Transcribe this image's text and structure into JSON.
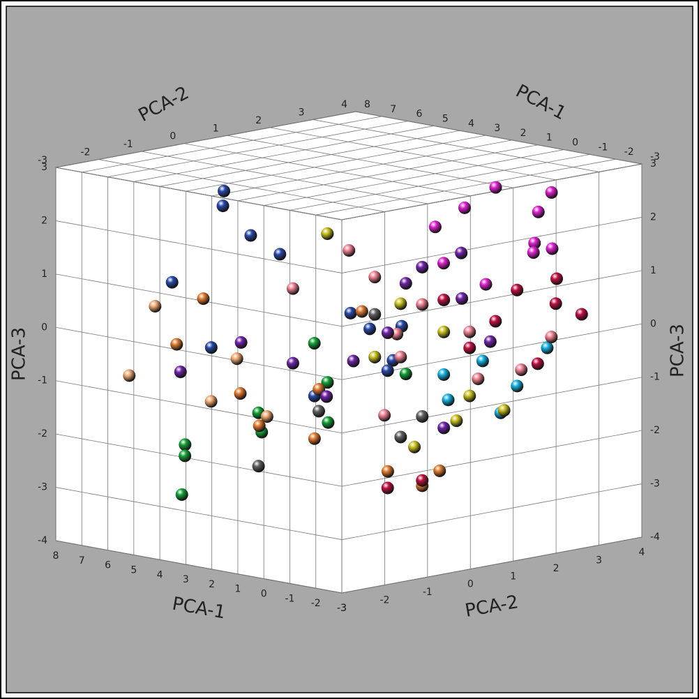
{
  "chart_data": {
    "type": "scatter3d",
    "xlabel": "PCA-1",
    "ylabel": "PCA-2",
    "zlabel": "PCA-3",
    "xlim": [
      -3,
      8
    ],
    "ylim": [
      -3,
      4
    ],
    "zlim": [
      -4,
      3
    ],
    "xticks": [
      -3,
      -2,
      -1,
      0,
      1,
      2,
      3,
      4,
      5,
      6,
      7,
      8
    ],
    "yticks": [
      -3,
      -2,
      -1,
      0,
      1,
      2,
      3,
      4
    ],
    "zticks": [
      -4,
      -3,
      -2,
      -1,
      0,
      1,
      2,
      3
    ],
    "grid": true,
    "series": [
      {
        "color": "#2848a8",
        "x": [
          4.5,
          5.2,
          3.8,
          2.1,
          3.5,
          6.0,
          1.2,
          0.8,
          2.5,
          4.0,
          1.5,
          0.3
        ],
        "y": [
          -1.2,
          -0.8,
          -1.0,
          0.3,
          -0.5,
          -1.5,
          0.2,
          0.5,
          -0.3,
          -1.8,
          0.8,
          0.4
        ],
        "z": [
          2.6,
          2.2,
          1.8,
          0.3,
          1.4,
          0.8,
          0.1,
          -0.5,
          -1.2,
          -0.2,
          -0.8,
          0.2
        ]
      },
      {
        "color": "#e020d0",
        "x": [
          -1.5,
          -0.8,
          -2.0,
          -1.0,
          0.0,
          -2.5,
          -1.8,
          0.5,
          -0.3,
          -1.2
        ],
        "y": [
          1.5,
          1.2,
          2.5,
          2.8,
          1.0,
          1.8,
          2.2,
          1.5,
          2.0,
          3.0
        ],
        "z": [
          2.8,
          2.4,
          2.6,
          2.1,
          2.0,
          1.8,
          1.5,
          1.2,
          0.8,
          1.4
        ]
      },
      {
        "color": "#12a035",
        "x": [
          5.5,
          6.0,
          4.2,
          3.5,
          2.8,
          2.0,
          1.5,
          3.0,
          4.8,
          0.8
        ],
        "y": [
          -1.5,
          -1.2,
          -0.5,
          -1.0,
          0.2,
          -0.3,
          0.5,
          0.0,
          -2.0,
          0.8
        ],
        "z": [
          -2.2,
          -2.5,
          -2.0,
          -1.5,
          -1.8,
          -0.9,
          -0.5,
          -0.3,
          -3.0,
          -0.8
        ]
      },
      {
        "color": "#e07a30",
        "x": [
          5.0,
          4.2,
          3.8,
          2.5,
          1.0,
          0.5,
          -0.5,
          2.0,
          1.5,
          4.8
        ],
        "y": [
          -2.0,
          -1.0,
          -0.8,
          -0.3,
          0.5,
          1.0,
          0.8,
          -0.5,
          0.2,
          -1.5
        ],
        "z": [
          -0.2,
          -1.2,
          -1.8,
          -2.0,
          -2.6,
          -2.9,
          -2.5,
          -1.0,
          0.4,
          0.6
        ]
      },
      {
        "color": "#c01040",
        "x": [
          -1.5,
          -2.0,
          -1.0,
          -2.5,
          -0.5,
          -1.8,
          0.0,
          -2.2,
          1.5,
          0.5
        ],
        "y": [
          2.0,
          2.6,
          1.8,
          2.9,
          1.5,
          2.3,
          1.2,
          2.5,
          0.8,
          1.0
        ],
        "z": [
          0.8,
          0.5,
          0.2,
          0.3,
          -0.3,
          -0.6,
          0.6,
          1.0,
          -3.0,
          -2.8
        ]
      },
      {
        "color": "#14b0e0",
        "x": [
          -1.0,
          -1.5,
          -0.5,
          0.0,
          -2.0,
          -1.2
        ],
        "y": [
          1.5,
          2.0,
          1.0,
          1.2,
          2.4,
          1.8
        ],
        "z": [
          -0.5,
          -1.0,
          -1.2,
          -0.8,
          -0.3,
          -1.5
        ]
      },
      {
        "color": "#f08090",
        "x": [
          2.0,
          1.5,
          0.5,
          -0.5,
          1.0,
          0.0,
          -1.0,
          2.5,
          3.0,
          -1.5,
          0.8,
          1.8
        ],
        "y": [
          0.2,
          0.5,
          1.0,
          1.5,
          0.8,
          2.0,
          2.4,
          0.0,
          -0.5,
          2.8,
          0.3,
          1.2
        ],
        "z": [
          1.5,
          1.0,
          0.5,
          0.0,
          -0.5,
          -1.0,
          -0.8,
          1.8,
          0.8,
          -0.2,
          -1.5,
          -0.2
        ]
      },
      {
        "color": "#7024a8",
        "x": [
          0.5,
          -0.2,
          1.0,
          1.5,
          -0.8,
          3.0,
          4.5,
          6.5,
          0.0,
          -1.0,
          2.2,
          0.8
        ],
        "y": [
          1.0,
          1.5,
          0.5,
          0.0,
          1.8,
          -0.5,
          -0.8,
          -1.0,
          1.2,
          1.0,
          -0.2,
          0.8
        ],
        "z": [
          1.2,
          0.6,
          0.0,
          -0.5,
          -0.2,
          -0.6,
          -0.3,
          -1.0,
          -1.8,
          1.6,
          -1.2,
          0.9
        ]
      },
      {
        "color": "#c8c020",
        "x": [
          2.5,
          1.0,
          0.0,
          -0.5,
          1.5,
          0.5,
          -1.0,
          0.8
        ],
        "y": [
          0.0,
          0.8,
          1.2,
          1.5,
          0.5,
          1.8,
          2.0,
          1.0
        ],
        "z": [
          1.8,
          0.5,
          0.0,
          -1.2,
          -0.5,
          -1.8,
          -1.5,
          -2.2
        ]
      },
      {
        "color": "#606060",
        "x": [
          1.5,
          2.5,
          1.0,
          3.5,
          0.5
        ],
        "y": [
          0.5,
          -0.2,
          0.8,
          -1.0,
          1.0
        ],
        "z": [
          0.3,
          -1.5,
          -2.0,
          -2.5,
          -1.6
        ]
      },
      {
        "color": "#f0a870",
        "x": [
          5.5,
          4.0,
          6.0,
          3.5,
          4.5
        ],
        "y": [
          -2.2,
          -1.2,
          -2.5,
          -0.8,
          -1.5
        ],
        "z": [
          0.5,
          -0.5,
          -0.8,
          -1.6,
          -1.3
        ]
      }
    ]
  }
}
